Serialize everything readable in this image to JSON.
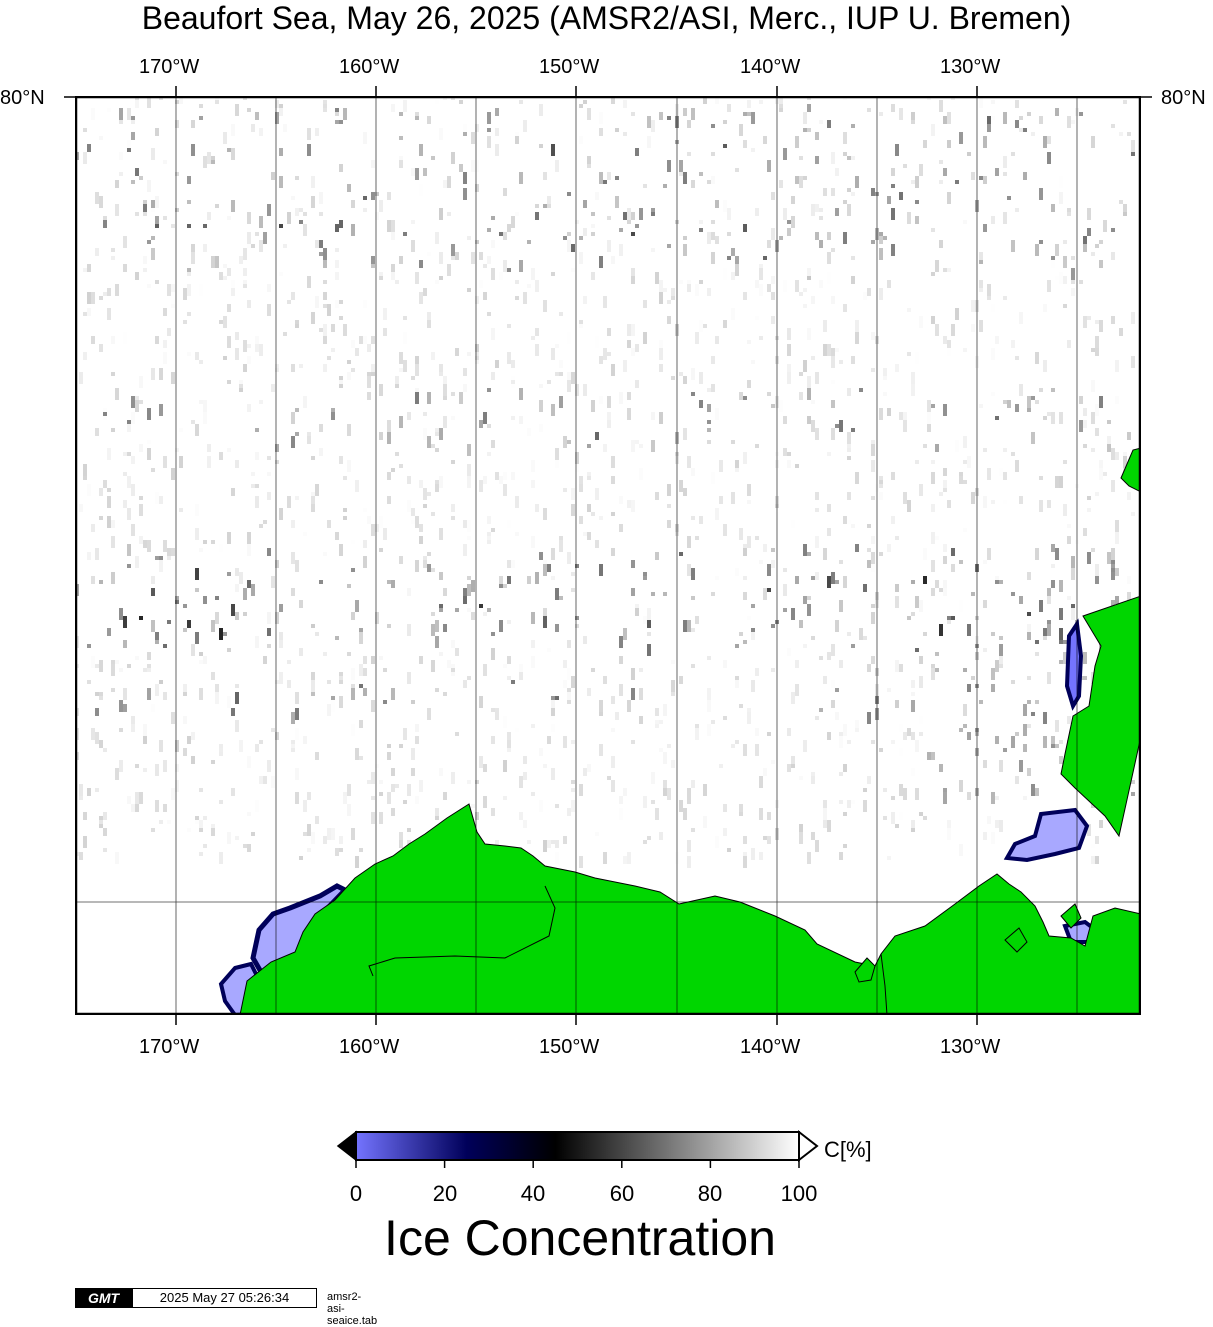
{
  "title": "Beaufort Sea, May 26, 2025 (AMSR2/ASI, Merc., IUP U. Bremen)",
  "map": {
    "lon_labels": [
      "170°W",
      "160°W",
      "150°W",
      "140°W",
      "130°W"
    ],
    "lat_label": "80°N",
    "colors": {
      "land": "#00d600",
      "ocean": "#ffffff",
      "low_ice": "#a8a8ff",
      "gridline": "#000000"
    }
  },
  "colorbar": {
    "title": "Ice Concentration",
    "unit": "C[%]",
    "ticks": [
      "0",
      "20",
      "40",
      "60",
      "80",
      "100"
    ],
    "gradient": [
      "#7474ff",
      "#00005a",
      "#000000",
      "#ffffff"
    ]
  },
  "footer": {
    "logo": "GMT",
    "timestamp": "2025 May 27 05:26:34",
    "source": "amsr2-asi-seaice.tab"
  }
}
